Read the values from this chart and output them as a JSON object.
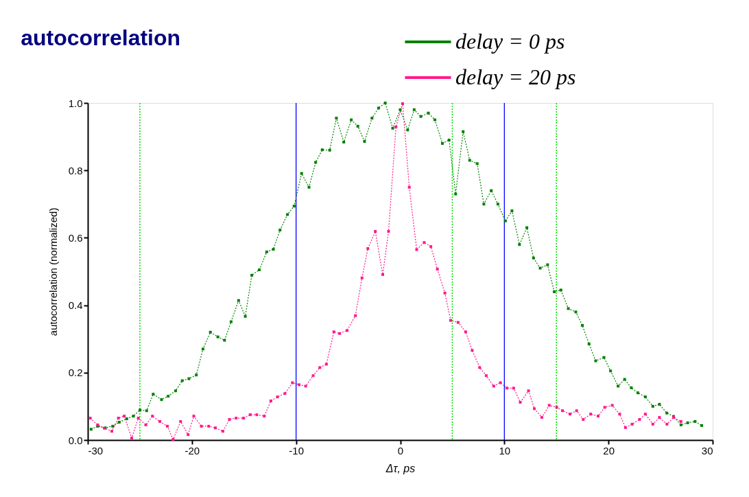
{
  "chart_data": {
    "type": "line",
    "title": "autocorrelation",
    "xlabel": "Δτ, ps",
    "ylabel": "autocorrelation (normalized)",
    "xlim": [
      -30,
      30
    ],
    "xticks": [
      -30,
      -20,
      -10,
      0,
      10,
      20,
      30
    ],
    "ylim": [
      0,
      1.0
    ],
    "yticks": [
      {
        "value": 0,
        "label": "0.0"
      },
      0.2,
      0.4,
      0.6,
      0.8,
      {
        "value": 1,
        "label": "1.0"
      }
    ],
    "grid": false,
    "legend": "top right",
    "marker": "square",
    "line_style": "dotted",
    "ref_lines": [
      {
        "axis": "x",
        "value": -10,
        "color": "#0000ff",
        "line_style": "solid"
      },
      {
        "axis": "x",
        "value": 10,
        "color": "#0000ff",
        "line_style": "solid"
      },
      {
        "axis": "x",
        "value": -25,
        "color": "#00e000",
        "line_style": "dotted"
      },
      {
        "axis": "x",
        "value": 5,
        "color": "#00e000",
        "line_style": "dotted"
      },
      {
        "axis": "x",
        "value": 15,
        "color": "#00e000",
        "line_style": "dotted"
      }
    ],
    "series": [
      {
        "name": "delay = 0 ps",
        "color": "#008000",
        "x": [
          -29.68,
          -29.05,
          -28.33,
          -27.61,
          -26.98,
          -26.26,
          -25.62,
          -24.99,
          -24.35,
          -23.72,
          -22.92,
          -22.28,
          -21.57,
          -20.93,
          -20.29,
          -19.58,
          -18.94,
          -18.23,
          -17.51,
          -16.87,
          -16.24,
          -15.52,
          -14.88,
          -14.25,
          -13.53,
          -12.82,
          -12.18,
          -11.54,
          -10.83,
          -10.19,
          -9.47,
          -8.76,
          -8.12,
          -7.49,
          -6.77,
          -6.13,
          -5.42,
          -4.7,
          -4.07,
          -3.43,
          -2.71,
          -2.08,
          -1.44,
          -0.72,
          0.0,
          0.71,
          1.34,
          1.98,
          2.7,
          3.33,
          4.05,
          4.69,
          5.32,
          6.04,
          6.67,
          7.39,
          8.03,
          8.74,
          9.38,
          10.1,
          10.73,
          11.45,
          12.16,
          12.8,
          13.44,
          14.15,
          14.79,
          15.43,
          16.14,
          16.86,
          17.49,
          18.13,
          18.77,
          19.56,
          20.2,
          20.92,
          21.55,
          22.19,
          22.82,
          23.54,
          24.26,
          24.89,
          25.6,
          26.25,
          26.96,
          27.6,
          28.31,
          28.95
        ],
        "values": [
          0.032,
          0.041,
          0.036,
          0.041,
          0.053,
          0.063,
          0.071,
          0.089,
          0.087,
          0.136,
          0.12,
          0.13,
          0.146,
          0.176,
          0.182,
          0.193,
          0.27,
          0.32,
          0.306,
          0.296,
          0.351,
          0.414,
          0.367,
          0.489,
          0.505,
          0.558,
          0.566,
          0.623,
          0.669,
          0.694,
          0.791,
          0.75,
          0.824,
          0.861,
          0.86,
          0.955,
          0.884,
          0.95,
          0.931,
          0.886,
          0.955,
          0.985,
          1.0,
          0.925,
          0.98,
          0.92,
          0.98,
          0.96,
          0.97,
          0.95,
          0.88,
          0.89,
          0.73,
          0.915,
          0.83,
          0.82,
          0.7,
          0.74,
          0.7,
          0.65,
          0.68,
          0.58,
          0.63,
          0.54,
          0.51,
          0.52,
          0.44,
          0.445,
          0.39,
          0.38,
          0.34,
          0.285,
          0.235,
          0.245,
          0.205,
          0.16,
          0.18,
          0.155,
          0.14,
          0.128,
          0.1,
          0.106,
          0.08,
          0.07,
          0.045,
          0.051,
          0.055,
          0.043
        ]
      },
      {
        "name": "delay = 20 ps",
        "color": "#ff1a8c",
        "x": [
          -29.76,
          -29.05,
          -28.41,
          -27.69,
          -27.06,
          -26.5,
          -25.78,
          -25.15,
          -24.43,
          -23.79,
          -23.08,
          -22.36,
          -21.81,
          -21.09,
          -20.37,
          -19.82,
          -19.1,
          -18.39,
          -17.75,
          -17.03,
          -16.4,
          -15.76,
          -15.04,
          -14.41,
          -13.77,
          -13.05,
          -12.42,
          -11.78,
          -11.07,
          -10.35,
          -9.71,
          -9.08,
          -8.36,
          -7.72,
          -7.09,
          -6.37,
          -5.82,
          -5.1,
          -4.3,
          -3.67,
          -3.11,
          -2.39,
          -1.68,
          -1.12,
          -0.41,
          0.23,
          0.87,
          1.58,
          2.3,
          2.94,
          3.57,
          4.29,
          4.84,
          5.56,
          6.28,
          6.91,
          7.63,
          8.26,
          8.98,
          9.62,
          10.25,
          10.89,
          11.53,
          12.32,
          12.88,
          13.6,
          14.31,
          15.03,
          15.58,
          16.3,
          16.94,
          17.57,
          18.29,
          19.0,
          19.64,
          20.36,
          21.07,
          21.63,
          22.27,
          22.98,
          23.54,
          24.26,
          24.89,
          25.61,
          26.25,
          26.96
        ],
        "values": [
          0.065,
          0.045,
          0.035,
          0.026,
          0.065,
          0.071,
          0.006,
          0.065,
          0.045,
          0.071,
          0.055,
          0.041,
          0.002,
          0.055,
          0.016,
          0.071,
          0.041,
          0.041,
          0.036,
          0.026,
          0.061,
          0.065,
          0.065,
          0.075,
          0.075,
          0.071,
          0.116,
          0.128,
          0.138,
          0.17,
          0.164,
          0.16,
          0.191,
          0.215,
          0.225,
          0.321,
          0.316,
          0.325,
          0.369,
          0.481,
          0.568,
          0.619,
          0.491,
          0.619,
          0.929,
          0.998,
          0.75,
          0.565,
          0.586,
          0.574,
          0.507,
          0.436,
          0.355,
          0.349,
          0.321,
          0.266,
          0.215,
          0.191,
          0.16,
          0.17,
          0.154,
          0.154,
          0.112,
          0.146,
          0.093,
          0.067,
          0.103,
          0.097,
          0.087,
          0.077,
          0.087,
          0.061,
          0.077,
          0.071,
          0.097,
          0.103,
          0.077,
          0.037,
          0.047,
          0.061,
          0.077,
          0.047,
          0.067,
          0.047,
          0.067,
          0.055
        ]
      }
    ]
  }
}
